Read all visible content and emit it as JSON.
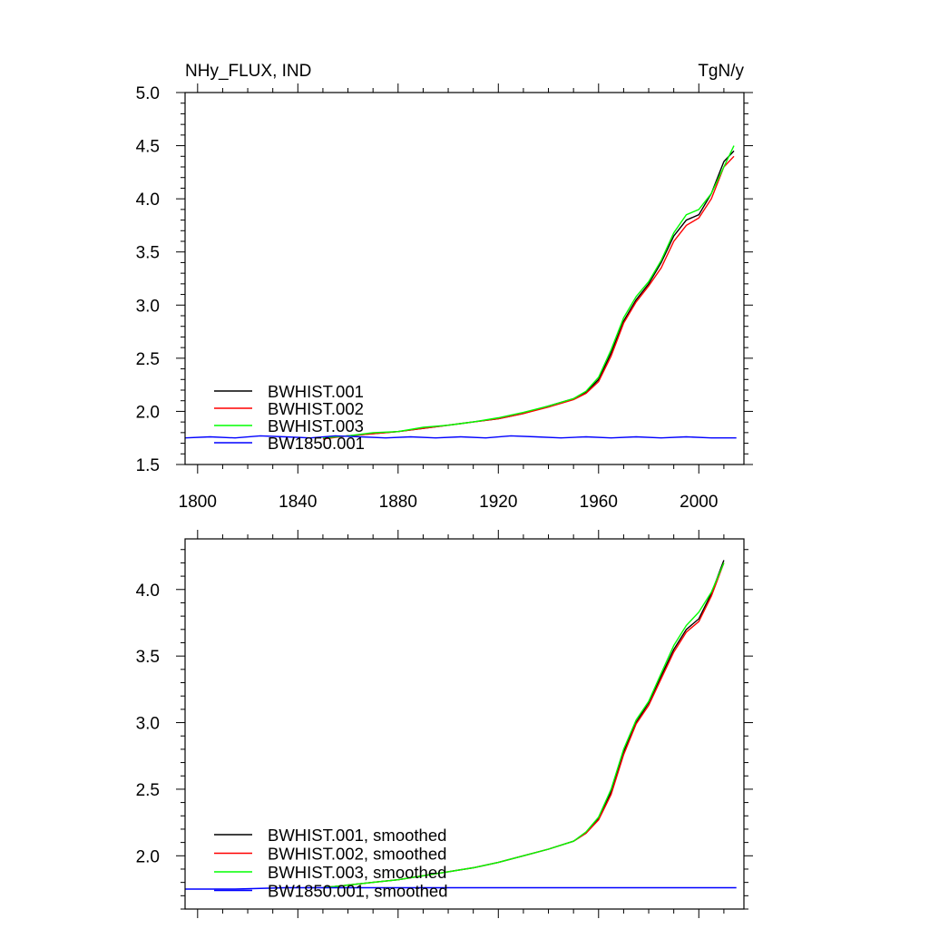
{
  "chart_data": [
    {
      "type": "line",
      "title_left": "NHy_FLUX, IND",
      "title_right": "TgN/y",
      "xlim": [
        1795,
        2018
      ],
      "ylim": [
        1.5,
        5.0
      ],
      "xticks": [
        1800,
        1840,
        1880,
        1920,
        1960,
        2000
      ],
      "xtick_labels": [
        "1800",
        "1840",
        "1880",
        "1920",
        "1960",
        "2000"
      ],
      "yticks": [
        1.5,
        2.0,
        2.5,
        3.0,
        3.5,
        4.0,
        4.5,
        5.0
      ],
      "ytick_labels": [
        "1.5",
        "2.0",
        "2.5",
        "3.0",
        "3.5",
        "4.0",
        "4.5",
        "5.0"
      ],
      "legend_position": "bottom-left",
      "series": [
        {
          "name": "BWHIST.001",
          "color": "#000000",
          "x": [
            1850,
            1860,
            1870,
            1880,
            1890,
            1900,
            1910,
            1920,
            1930,
            1940,
            1950,
            1955,
            1960,
            1965,
            1970,
            1975,
            1980,
            1985,
            1990,
            1995,
            2000,
            2005,
            2010,
            2014
          ],
          "y": [
            1.75,
            1.77,
            1.79,
            1.81,
            1.84,
            1.87,
            1.9,
            1.93,
            1.98,
            2.05,
            2.12,
            2.18,
            2.3,
            2.55,
            2.85,
            3.05,
            3.2,
            3.4,
            3.65,
            3.8,
            3.85,
            4.05,
            4.35,
            4.45
          ]
        },
        {
          "name": "BWHIST.002",
          "color": "#ff0000",
          "x": [
            1850,
            1860,
            1870,
            1880,
            1890,
            1900,
            1910,
            1920,
            1930,
            1940,
            1950,
            1955,
            1960,
            1965,
            1970,
            1975,
            1980,
            1985,
            1990,
            1995,
            2000,
            2005,
            2010,
            2014
          ],
          "y": [
            1.74,
            1.77,
            1.79,
            1.81,
            1.84,
            1.87,
            1.9,
            1.93,
            1.98,
            2.04,
            2.11,
            2.17,
            2.28,
            2.52,
            2.83,
            3.03,
            3.18,
            3.35,
            3.6,
            3.75,
            3.82,
            4.0,
            4.3,
            4.4
          ]
        },
        {
          "name": "BWHIST.003",
          "color": "#00ff00",
          "x": [
            1850,
            1860,
            1870,
            1880,
            1890,
            1900,
            1910,
            1920,
            1930,
            1940,
            1950,
            1955,
            1960,
            1965,
            1970,
            1975,
            1980,
            1985,
            1990,
            1995,
            2000,
            2005,
            2010,
            2014
          ],
          "y": [
            1.75,
            1.77,
            1.8,
            1.81,
            1.85,
            1.87,
            1.9,
            1.94,
            1.99,
            2.05,
            2.12,
            2.19,
            2.32,
            2.58,
            2.88,
            3.08,
            3.22,
            3.42,
            3.68,
            3.85,
            3.9,
            4.05,
            4.3,
            4.5
          ]
        },
        {
          "name": "BW1850.001",
          "color": "#0000ff",
          "x": [
            1795,
            1805,
            1815,
            1825,
            1835,
            1845,
            1855,
            1865,
            1875,
            1885,
            1895,
            1905,
            1915,
            1925,
            1935,
            1945,
            1955,
            1965,
            1975,
            1985,
            1995,
            2005,
            2015
          ],
          "y": [
            1.75,
            1.76,
            1.75,
            1.77,
            1.76,
            1.75,
            1.77,
            1.76,
            1.75,
            1.76,
            1.75,
            1.76,
            1.75,
            1.77,
            1.76,
            1.75,
            1.76,
            1.75,
            1.76,
            1.75,
            1.76,
            1.75,
            1.75
          ]
        }
      ]
    },
    {
      "type": "line",
      "xlim": [
        1795,
        2018
      ],
      "ylim": [
        1.6,
        4.38
      ],
      "xticks": [
        1800,
        1840,
        1880,
        1920,
        1960,
        2000
      ],
      "yticks": [
        2.0,
        2.5,
        3.0,
        3.5,
        4.0
      ],
      "ytick_labels": [
        "2.0",
        "2.5",
        "3.0",
        "3.5",
        "4.0"
      ],
      "legend_position": "bottom-left",
      "series": [
        {
          "name": "BWHIST.001, smoothed",
          "color": "#000000",
          "x": [
            1850,
            1860,
            1870,
            1880,
            1890,
            1900,
            1910,
            1920,
            1930,
            1940,
            1950,
            1955,
            1960,
            1965,
            1970,
            1975,
            1980,
            1985,
            1990,
            1995,
            2000,
            2005,
            2010
          ],
          "y": [
            1.76,
            1.78,
            1.8,
            1.82,
            1.85,
            1.88,
            1.91,
            1.95,
            2.0,
            2.05,
            2.11,
            2.17,
            2.28,
            2.48,
            2.78,
            3.0,
            3.15,
            3.35,
            3.55,
            3.7,
            3.78,
            3.97,
            4.22
          ]
        },
        {
          "name": "BWHIST.002, smoothed",
          "color": "#ff0000",
          "x": [
            1850,
            1860,
            1870,
            1880,
            1890,
            1900,
            1910,
            1920,
            1930,
            1940,
            1950,
            1955,
            1960,
            1965,
            1970,
            1975,
            1980,
            1985,
            1990,
            1995,
            2000,
            2005,
            2010
          ],
          "y": [
            1.76,
            1.78,
            1.8,
            1.82,
            1.85,
            1.88,
            1.91,
            1.95,
            2.0,
            2.05,
            2.11,
            2.17,
            2.27,
            2.46,
            2.76,
            2.99,
            3.13,
            3.33,
            3.53,
            3.68,
            3.76,
            3.95,
            4.2
          ]
        },
        {
          "name": "BWHIST.003, smoothed",
          "color": "#00ff00",
          "x": [
            1850,
            1860,
            1870,
            1880,
            1890,
            1900,
            1910,
            1920,
            1930,
            1940,
            1950,
            1955,
            1960,
            1965,
            1970,
            1975,
            1980,
            1985,
            1990,
            1995,
            2000,
            2005,
            2010
          ],
          "y": [
            1.76,
            1.78,
            1.8,
            1.82,
            1.85,
            1.88,
            1.91,
            1.95,
            2.0,
            2.05,
            2.11,
            2.18,
            2.29,
            2.5,
            2.8,
            3.02,
            3.16,
            3.37,
            3.58,
            3.73,
            3.83,
            3.98,
            4.2
          ]
        },
        {
          "name": "BW1850.001, smoothed",
          "color": "#0000ff",
          "x": [
            1795,
            1815,
            1835,
            1855,
            1875,
            1895,
            1915,
            1935,
            1955,
            1975,
            1995,
            2015
          ],
          "y": [
            1.75,
            1.75,
            1.76,
            1.76,
            1.76,
            1.76,
            1.76,
            1.76,
            1.76,
            1.76,
            1.76,
            1.76
          ]
        }
      ]
    }
  ]
}
